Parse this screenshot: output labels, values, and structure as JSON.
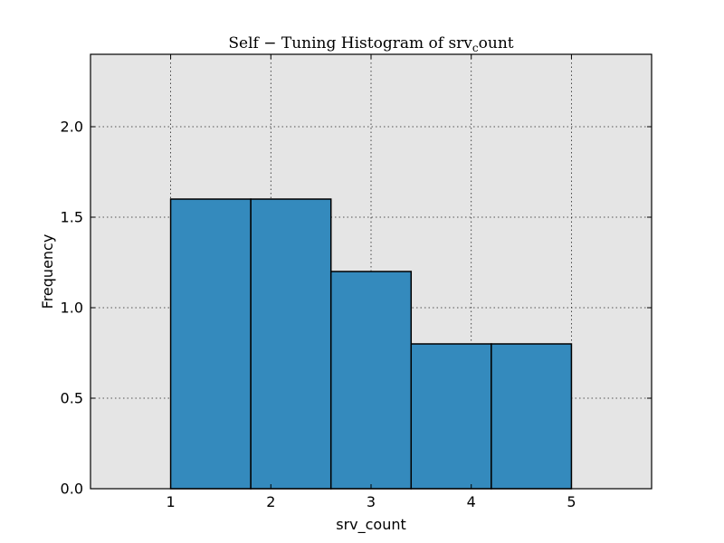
{
  "chart_data": {
    "type": "bar",
    "title": "Self − Tuning Histogram of srv",
    "title_subscript": "c",
    "title_suffix": "ount",
    "xlabel": "srv_count",
    "ylabel": "Frequency",
    "xlim": [
      0.2,
      5.8
    ],
    "ylim": [
      0,
      2.4
    ],
    "xticks": [
      1,
      2,
      3,
      4,
      5
    ],
    "xtick_labels": [
      "1",
      "2",
      "3",
      "4",
      "5"
    ],
    "yticks": [
      0.0,
      0.5,
      1.0,
      1.5,
      2.0
    ],
    "ytick_labels": [
      "0.0",
      "0.5",
      "1.0",
      "1.5",
      "2.0"
    ],
    "bins": [
      {
        "x0": 1.0,
        "x1": 1.8,
        "value": 1.6
      },
      {
        "x0": 1.8,
        "x1": 2.6,
        "value": 1.6
      },
      {
        "x0": 2.6,
        "x1": 3.4,
        "value": 1.2
      },
      {
        "x0": 3.4,
        "x1": 4.2,
        "value": 0.8
      },
      {
        "x0": 4.2,
        "x1": 5.0,
        "value": 0.8
      }
    ],
    "grid": true,
    "colors": {
      "bar": "#348abd",
      "plot_background": "#e5e5e5"
    }
  }
}
